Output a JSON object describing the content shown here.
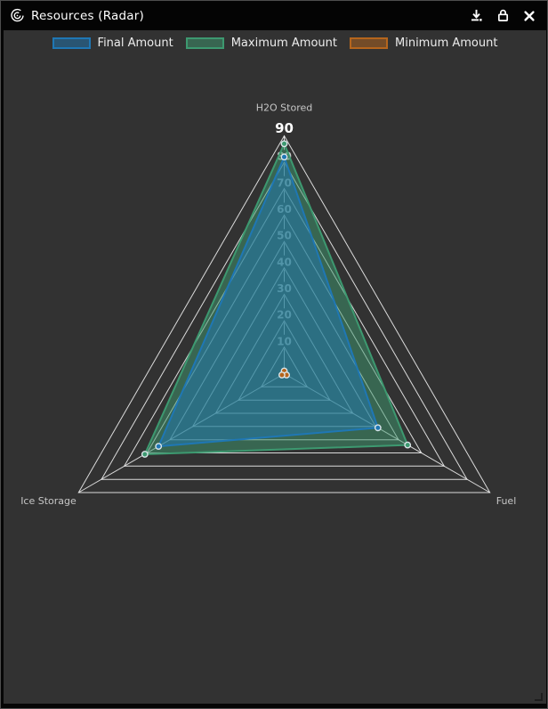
{
  "window": {
    "title": "Resources (Radar)",
    "app_icon": "radar-chart-icon",
    "actions": [
      {
        "name": "download",
        "icon": "download-icon"
      },
      {
        "name": "lock",
        "icon": "lock-icon"
      },
      {
        "name": "close",
        "icon": "close-icon"
      }
    ]
  },
  "colors": {
    "titlebar_bg": "#040404",
    "panel_bg": "#323232",
    "grid_line": "#f2f2f2",
    "tick_label": "#c9c9c9",
    "max_tick_label": "#ffffff",
    "axis_title": "#c6c6c6",
    "marker_ring": "#dce6e9"
  },
  "chart_data": {
    "type": "radar",
    "axes": [
      "H2O Stored",
      "Fuel",
      "Ice Storage"
    ],
    "range": [
      0,
      90
    ],
    "radial_ticks": [
      10,
      20,
      30,
      40,
      50,
      60,
      70,
      80
    ],
    "max_tick": "90",
    "grid": true,
    "legend_position": "top",
    "series": [
      {
        "name": "Final Amount",
        "color": "#1f77b4",
        "fill_opacity": 0.5,
        "values": [
          82,
          41,
          55
        ]
      },
      {
        "name": "Maximum Amount",
        "color": "#3d9970",
        "fill_opacity": 0.5,
        "values": [
          87,
          54,
          61
        ]
      },
      {
        "name": "Minimum Amount",
        "color": "#b5651d",
        "fill_opacity": 0.5,
        "values": [
          1,
          1,
          1
        ]
      }
    ]
  }
}
